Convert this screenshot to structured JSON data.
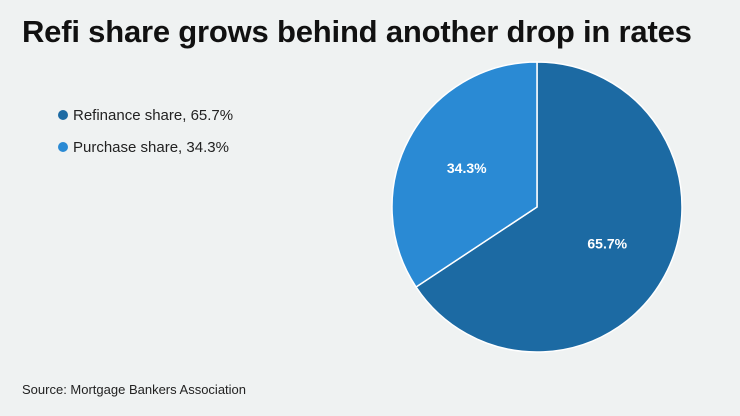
{
  "chart_data": {
    "type": "pie",
    "title": "Refi share grows behind another drop in rates",
    "categories": [
      "Refinance share",
      "Purchase share"
    ],
    "values": [
      65.7,
      34.3
    ],
    "unit": "%",
    "colors": [
      "#1c6aa3",
      "#2a8ad4"
    ],
    "legend": [
      {
        "label": "Refinance share, 65.7%",
        "color": "#1c6aa3"
      },
      {
        "label": "Purchase share, 34.3%",
        "color": "#2a8ad4"
      }
    ],
    "data_labels": [
      "65.7%",
      "34.3%"
    ],
    "legend_position": "left",
    "source": "Source: Mortgage Bankers Association"
  }
}
